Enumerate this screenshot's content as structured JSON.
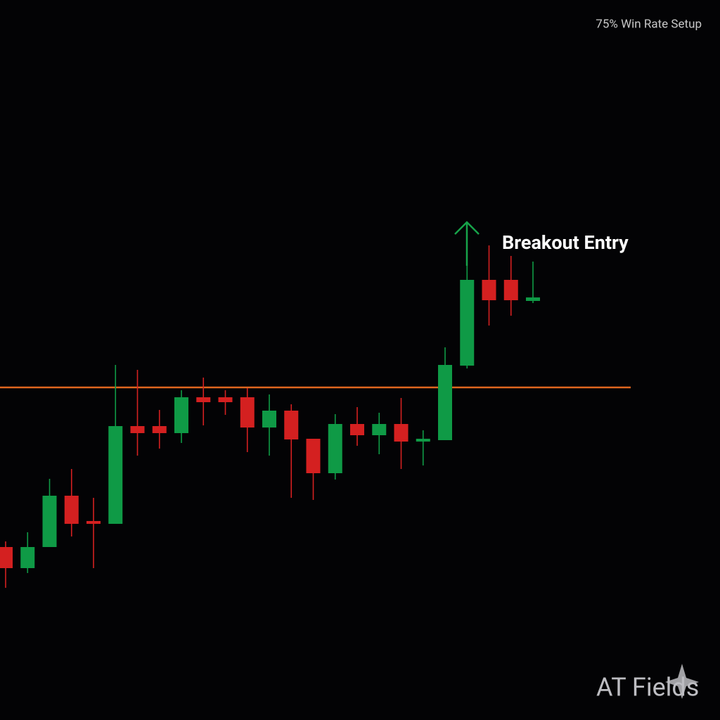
{
  "chart_data": {
    "type": "candlestick",
    "title": "75% Win Rate Setup",
    "annotation": "Breakout Entry",
    "watermark": "AT Fields",
    "ylim": [
      0,
      1024
    ],
    "up_color": "#0f9a46",
    "down_color": "#d42020",
    "level": 473,
    "level_color": "#e0661f",
    "open": [
      246,
      216,
      246,
      319,
      283,
      279,
      418,
      418,
      408,
      459,
      459,
      459,
      416,
      440,
      400,
      351,
      421,
      405,
      421,
      396,
      398,
      504,
      626,
      626,
      596
    ],
    "high": [
      254,
      267,
      343,
      357,
      316,
      505,
      498,
      441,
      469,
      487,
      469,
      472,
      463,
      449,
      400,
      435,
      445,
      437,
      458,
      412,
      530,
      646,
      675,
      660,
      652
    ],
    "low": [
      188,
      209,
      246,
      261,
      216,
      279,
      376,
      386,
      394,
      419,
      434,
      381,
      376,
      316,
      313,
      342,
      390,
      378,
      357,
      362,
      398,
      500,
      561,
      575,
      593
    ],
    "close": [
      216,
      246,
      319,
      279,
      279,
      418,
      408,
      408,
      459,
      452,
      452,
      416,
      440,
      399,
      351,
      421,
      405,
      421,
      396,
      400,
      505,
      626,
      597,
      597,
      601
    ]
  }
}
